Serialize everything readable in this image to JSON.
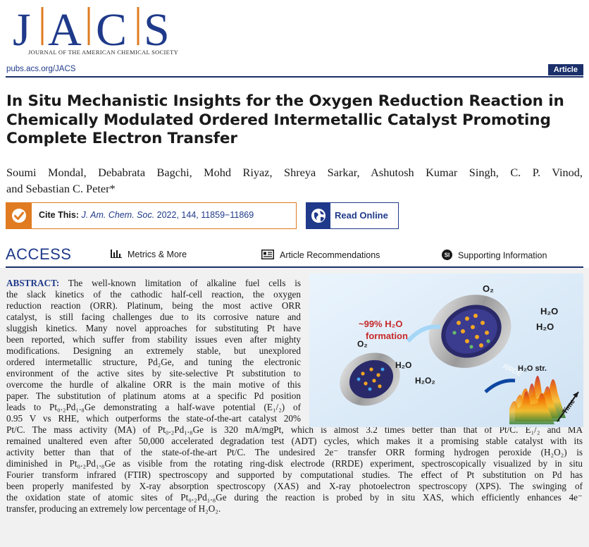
{
  "journal": {
    "logo_letters": [
      "J",
      "A",
      "C",
      "S"
    ],
    "full_name": "JOURNAL OF THE AMERICAN CHEMICAL SOCIETY",
    "url": "pubs.acs.org/JACS",
    "article_type": "Article"
  },
  "article": {
    "title_line1": "In Situ Mechanistic Insights for the Oxygen Reduction Reaction in",
    "title_line2": "Chemically Modulated Ordered Intermetallic Catalyst Promoting",
    "title_line3": "Complete Electron Transfer",
    "authors_line1": "Soumi Mondal, Debabrata Bagchi, Mohd Riyaz, Shreya Sarkar, Ashutosh Kumar Singh, C. P. Vinod,",
    "authors_line2": "and Sebastian C. Peter*"
  },
  "cite": {
    "label": "Cite This:",
    "journal": "J. Am. Chem. Soc.",
    "details": "2022, 144, 11859−11869"
  },
  "read_online": "Read Online",
  "access": {
    "label": "ACCESS",
    "metrics": "Metrics & More",
    "recommendations": "Article Recommendations",
    "supporting": "Supporting Information",
    "si_badge": "SI"
  },
  "abstract": {
    "label": "ABSTRACT:",
    "l1": "The well-known limitation of alkaline fuel cells is",
    "l2": "the slack kinetics of the cathodic half-cell reaction, the oxygen",
    "l3": "reduction reaction (ORR). Platinum, being the most active ORR",
    "l4": "catalyst, is still facing challenges due to its corrosive nature and",
    "l5": "sluggish kinetics. Many novel approaches for substituting Pt have",
    "l6": "been reported, which suffer from stability issues even after mighty",
    "l7": "modifications. Designing an extremely stable, but unexplored",
    "l8": "ordered intermetallic structure, Pd₂Ge, and tuning the electronic",
    "l9": "environment of the active sites by site-selective Pt substitution to",
    "l10": "overcome the hurdle of alkaline ORR is the main motive of this",
    "l11": "paper. The substitution of platinum atoms at a specific Pd position",
    "l12": "leads to Pt₀.₂Pd₁.₈Ge demonstrating a half-wave potential (E₁/₂) of",
    "l13": "0.95 V vs RHE, which outperforms the state-of-the-art catalyst 20%",
    "l14": "Pt/C. The mass activity (MA) of Pt₀.₂Pd₁.₈Ge is 320 mA/mgPt, which is almost 3.2 times better than that of Pt/C. E₁/₂ and MA",
    "l15": "remained unaltered even after 50,000 accelerated degradation test (ADT) cycles, which makes it a promising stable catalyst with its",
    "l16": "activity better than that of the state-of-the-art Pt/C. The undesired 2e⁻ transfer ORR forming hydrogen peroxide (H₂O₂) is",
    "l17": "diminished in Pt₀.₂Pd₁.₈Ge as visible from the rotating ring-disk electrode (RRDE) experiment, spectroscopically visualized by in situ",
    "l18": "Fourier transform infrared (FTIR) spectroscopy and supported by computational studies. The effect of Pt substitution on Pd has",
    "l19": "been properly manifested by X-ray absorption spectroscopy (XAS) and X-ray photoelectron spectroscopy (XPS). The swinging of",
    "l20": "the oxidation state of atomic sites of Pt₀.₂Pd₁.₈Ge during the reaction is probed by in situ XAS, which efficiently enhances 4e⁻",
    "l21": "transfer, producing an extremely low percentage of H₂O₂."
  },
  "toc_graphic": {
    "o2_label": "O₂",
    "h2o_label": "H₂O",
    "h2o2_label": "H₂O₂",
    "formation_line1": "~99% H₂O",
    "formation_line2": "formation",
    "rrde_label": "RRDE",
    "h2o_str_label": "H₂O str.",
    "time_label": "Time"
  },
  "colors": {
    "jacs_blue": "#1f3a8a",
    "cite_orange": "#e07b21",
    "abstract_bg": "#f1f1f1",
    "toc_bg": "#dfeefb"
  }
}
